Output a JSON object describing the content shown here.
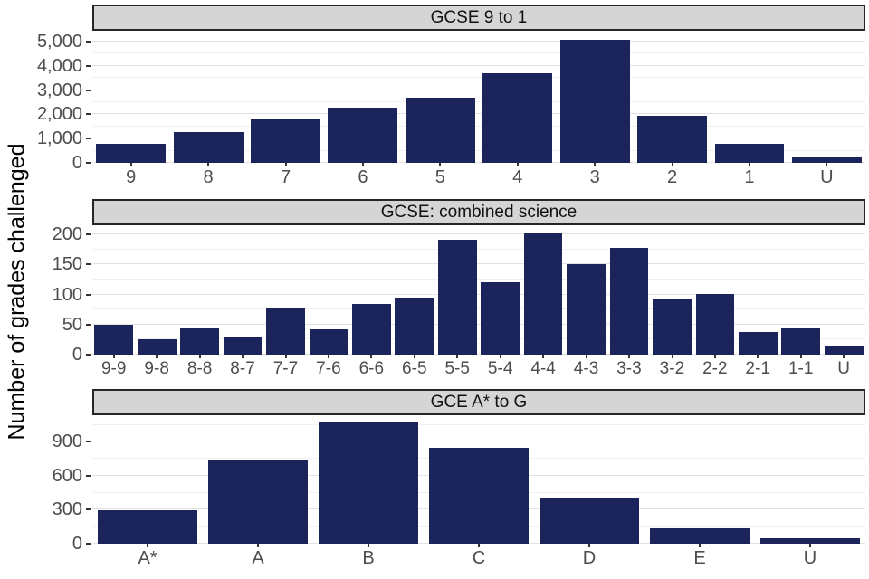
{
  "figure": {
    "y_axis_title": "Number of grades challenged",
    "colors": {
      "bar": "#1c245c",
      "strip_bg": "#d5d5d5",
      "strip_border": "#262626",
      "grid_major": "#e2e2e2",
      "grid_minor": "#f0f0f0",
      "axis_text": "#4d4d4d",
      "tick_mark": "#333333"
    }
  },
  "chart_data": [
    {
      "type": "bar",
      "title": "GCSE 9 to 1",
      "categories": [
        "9",
        "8",
        "7",
        "6",
        "5",
        "4",
        "3",
        "2",
        "1",
        "U"
      ],
      "values": [
        800,
        1280,
        1830,
        2290,
        2700,
        3700,
        5060,
        1950,
        780,
        220
      ],
      "xlabel": "",
      "ylim": [
        0,
        5450
      ],
      "yticks": [
        0,
        1000,
        2000,
        3000,
        4000,
        5000
      ],
      "ytick_labels": [
        "0",
        "1,000",
        "2,000",
        "3,000",
        "4,000",
        "5,000"
      ],
      "minor_step": 500,
      "grid": true,
      "legend": "none"
    },
    {
      "type": "bar",
      "title": "GCSE: combined science",
      "categories": [
        "9-9",
        "9-8",
        "8-8",
        "8-7",
        "7-7",
        "7-6",
        "6-6",
        "6-5",
        "5-5",
        "5-4",
        "4-4",
        "4-3",
        "3-3",
        "3-2",
        "2-2",
        "2-1",
        "1-1",
        "U"
      ],
      "values": [
        49,
        25,
        44,
        28,
        78,
        42,
        84,
        95,
        191,
        120,
        202,
        150,
        177,
        93,
        101,
        37,
        43,
        15
      ],
      "xlabel": "",
      "ylim": [
        0,
        215
      ],
      "yticks": [
        0,
        50,
        100,
        150,
        200
      ],
      "ytick_labels": [
        "0",
        "50",
        "100",
        "150",
        "200"
      ],
      "minor_step": 25,
      "grid": true,
      "legend": "none"
    },
    {
      "type": "bar",
      "title": "GCE A* to G",
      "categories": [
        "A*",
        "A",
        "B",
        "C",
        "D",
        "E",
        "U"
      ],
      "values": [
        295,
        737,
        1071,
        847,
        398,
        139,
        50
      ],
      "xlabel": "",
      "ylim": [
        0,
        1135
      ],
      "yticks": [
        0,
        300,
        600,
        900
      ],
      "ytick_labels": [
        "0",
        "300",
        "600",
        "900"
      ],
      "minor_step": 150,
      "grid": true,
      "legend": "none"
    }
  ]
}
